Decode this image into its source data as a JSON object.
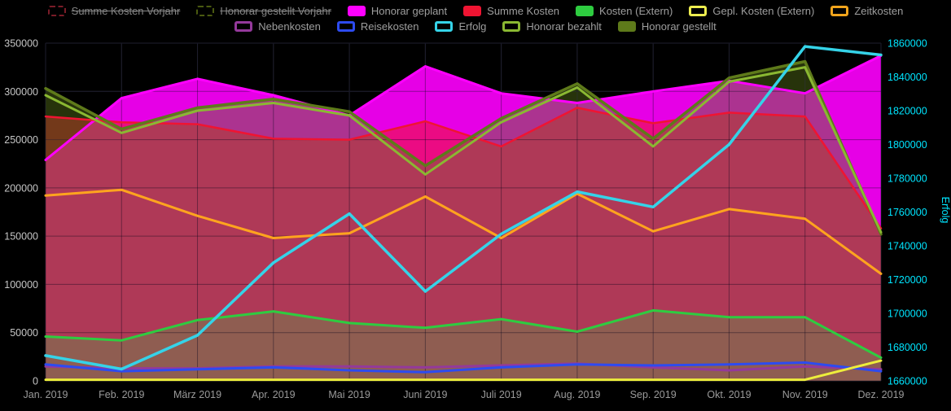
{
  "chart_data": {
    "type": "area",
    "title": "",
    "background": "#000000",
    "grid": true,
    "x_categories": [
      "Jan. 2019",
      "Feb. 2019",
      "März 2019",
      "Apr. 2019",
      "Mai 2019",
      "Juni 2019",
      "Juli 2019",
      "Aug. 2019",
      "Sep. 2019",
      "Okt. 2019",
      "Nov. 2019",
      "Dez. 2019"
    ],
    "left_axis": {
      "min": 0,
      "max": 350000,
      "step": 50000,
      "tick_labels": [
        "0",
        "50000",
        "100000",
        "150000",
        "200000",
        "250000",
        "300000",
        "350000"
      ],
      "tick_color": "#c6c6c6"
    },
    "right_axis": {
      "label": "Erfolg",
      "min": 1660000,
      "max": 1860000,
      "step": 20000,
      "tick_labels": [
        "1660000",
        "1680000",
        "1700000",
        "1720000",
        "1740000",
        "1760000",
        "1780000",
        "1800000",
        "1820000",
        "1840000",
        "1860000"
      ],
      "tick_color": "#00e5ff"
    },
    "x_tick_color": "#9a9a9a",
    "series": [
      {
        "name": "Honorar geplant",
        "color": "#ff00ff",
        "style": "area",
        "fill_opacity": 0.9,
        "axis": "left",
        "width": 3,
        "values": [
          229000,
          293000,
          313000,
          296000,
          275000,
          326000,
          298000,
          288000,
          300000,
          311000,
          298000,
          337000
        ]
      },
      {
        "name": "Summe Kosten",
        "color": "#ef1432",
        "style": "area",
        "fill_opacity": 0.55,
        "axis": "left",
        "width": 2.5,
        "values": [
          274000,
          268000,
          266000,
          251000,
          250000,
          269000,
          243000,
          283000,
          267000,
          278000,
          274000,
          158000
        ]
      },
      {
        "name": "Honorar gestellt",
        "color": "#5e7a1a",
        "style": "area",
        "fill_opacity": 0.42,
        "axis": "left",
        "width": 3.5,
        "values": [
          303000,
          261000,
          283000,
          292000,
          279000,
          223000,
          272000,
          308000,
          251000,
          314000,
          331000,
          152000
        ]
      },
      {
        "name": "Kosten (Extern)",
        "color": "#2ecc40",
        "style": "area",
        "fill_opacity": 0.25,
        "axis": "left",
        "width": 3,
        "values": [
          46000,
          42000,
          63000,
          72000,
          60000,
          55000,
          64000,
          51000,
          73000,
          66000,
          66000,
          24000
        ]
      },
      {
        "name": "Honorar bezahlt",
        "color": "#8ab832",
        "style": "line",
        "axis": "left",
        "width": 3,
        "values": [
          296000,
          257000,
          280000,
          288000,
          275000,
          214000,
          268000,
          304000,
          243000,
          310000,
          325000,
          154000
        ]
      },
      {
        "name": "Zeitkosten",
        "color": "#ffa41e",
        "style": "line",
        "axis": "left",
        "width": 3,
        "values": [
          192000,
          198000,
          171000,
          148000,
          153000,
          191000,
          148000,
          194000,
          155000,
          178000,
          168000,
          111000
        ]
      },
      {
        "name": "Nebenkosten",
        "color": "#94399b",
        "style": "line",
        "axis": "left",
        "width": 3,
        "values": [
          15000,
          13000,
          13000,
          15000,
          15000,
          14000,
          16000,
          18000,
          14000,
          11000,
          15000,
          12000
        ]
      },
      {
        "name": "Reisekosten",
        "color": "#2d4bf0",
        "style": "line",
        "axis": "left",
        "width": 3,
        "values": [
          17000,
          10000,
          12000,
          14000,
          11000,
          9000,
          14000,
          17000,
          16000,
          17000,
          19000,
          10000
        ]
      },
      {
        "name": "Gepl. Kosten (Extern)",
        "color": "#eded3c",
        "style": "line",
        "axis": "left",
        "width": 3,
        "values": [
          1200,
          1200,
          1200,
          1200,
          1200,
          1200,
          1200,
          1200,
          1200,
          1200,
          1200,
          21000
        ]
      },
      {
        "name": "Erfolg",
        "color": "#35d3e8",
        "style": "line",
        "axis": "right",
        "width": 3.5,
        "values": [
          1675000,
          1667000,
          1687000,
          1730000,
          1759000,
          1713000,
          1747000,
          1772000,
          1763000,
          1800000,
          1858000,
          1853000
        ]
      }
    ],
    "legend": {
      "rows": [
        [
          {
            "label": "Summe Kosten Vorjahr",
            "color": "#7a1c28",
            "swatch": "dashed",
            "struck": true
          },
          {
            "label": "Honorar gestellt Vorjahr",
            "color": "#4a5a10",
            "swatch": "dashed",
            "struck": true
          },
          {
            "label": "Honorar geplant",
            "color": "#ff00ff",
            "swatch": "filled",
            "struck": false
          },
          {
            "label": "Summe Kosten",
            "color": "#ef1432",
            "swatch": "filled",
            "struck": false
          },
          {
            "label": "Kosten (Extern)",
            "color": "#2ecc40",
            "swatch": "filled",
            "struck": false
          },
          {
            "label": "Gepl. Kosten (Extern)",
            "color": "#eded4f",
            "swatch": "outline",
            "struck": false
          },
          {
            "label": "Zeitkosten",
            "color": "#f0a41c",
            "swatch": "outline",
            "struck": false
          }
        ],
        [
          {
            "label": "Nebenkosten",
            "color": "#94399b",
            "swatch": "outline",
            "struck": false
          },
          {
            "label": "Reisekosten",
            "color": "#2d4bf0",
            "swatch": "outline",
            "struck": false
          },
          {
            "label": "Erfolg",
            "color": "#35d3e8",
            "swatch": "outline",
            "struck": false
          },
          {
            "label": "Honorar bezahlt",
            "color": "#8ab832",
            "swatch": "outline",
            "struck": false
          },
          {
            "label": "Honorar gestellt",
            "color": "#5e7a1a",
            "swatch": "filled",
            "struck": false
          }
        ]
      ]
    }
  }
}
